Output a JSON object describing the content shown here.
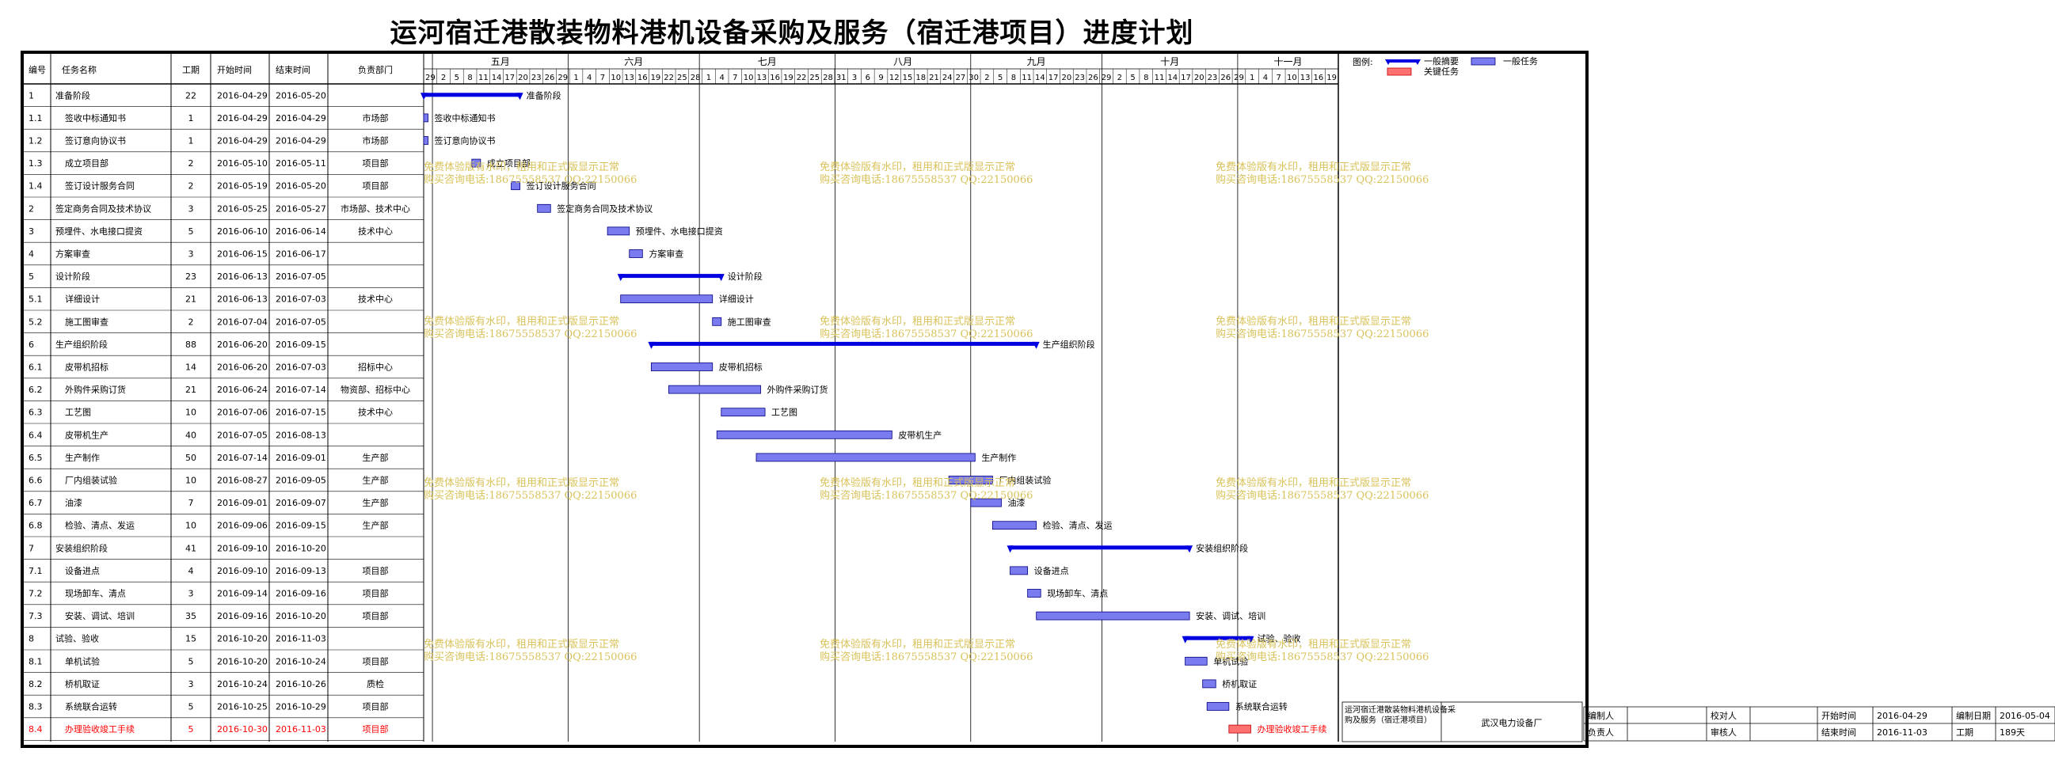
{
  "title": "运河宿迁港散装物料港机设备采购及服务（宿迁港项目）进度计划",
  "columns": [
    "编号",
    "任务名称",
    "工期",
    "开始时间",
    "结束时间",
    "负责部门"
  ],
  "legend": {
    "label": "图例:",
    "summary": "一般摘要",
    "task": "一般任务",
    "critical": "关键任务"
  },
  "colors": {
    "bar": "#7b7bf0",
    "summary": "#0000e0",
    "critical": "#ff7070",
    "critical_text": "#ff0000",
    "watermark": "#d9c25a"
  },
  "watermark": {
    "line1": "免费体验版有水印，租用和正式版显示正常",
    "line2": "购买咨询电话:18675558537 QQ:22150066"
  },
  "footer": {
    "project_name": "运河宿迁港散装物料港机设备采购及服务（宿迁港项目）",
    "company": "武汉电力设备厂",
    "editor_label": "编制人",
    "editor_value": "",
    "checker_label": "校对人",
    "checker_value": "",
    "start_label": "开始时间",
    "start_value": "2016-04-29",
    "date_label": "编制日期",
    "date_value": "2016-05-04",
    "owner_label": "负责人",
    "owner_value": "",
    "reviewer_label": "审核人",
    "reviewer_value": "",
    "end_label": "结束时间",
    "end_value": "2016-11-03",
    "duration_label": "工期",
    "duration_value": "189天"
  },
  "chart_data": {
    "type": "gantt",
    "x_start": "2016-04-29",
    "x_end": "2016-11-21",
    "months": [
      {
        "name": "五月",
        "start": "2016-05-01"
      },
      {
        "name": "六月",
        "start": "2016-06-01"
      },
      {
        "name": "七月",
        "start": "2016-07-01"
      },
      {
        "name": "八月",
        "start": "2016-08-01"
      },
      {
        "name": "九月",
        "start": "2016-09-01"
      },
      {
        "name": "十月",
        "start": "2016-10-01"
      },
      {
        "name": "十一月",
        "start": "2016-11-01"
      }
    ],
    "day_ticks": [
      "29",
      "2",
      "5",
      "8",
      "11",
      "14",
      "17",
      "20",
      "23",
      "26",
      "29",
      "1",
      "4",
      "7",
      "10",
      "13",
      "16",
      "19",
      "22",
      "25",
      "28",
      "1",
      "4",
      "7",
      "10",
      "13",
      "16",
      "19",
      "22",
      "25",
      "28",
      "31",
      "3",
      "6",
      "9",
      "12",
      "15",
      "18",
      "21",
      "24",
      "27",
      "30",
      "2",
      "5",
      "8",
      "11",
      "14",
      "17",
      "20",
      "23",
      "26",
      "29",
      "2",
      "5",
      "8",
      "11",
      "14",
      "17",
      "20",
      "23",
      "26",
      "29",
      "1",
      "4",
      "7",
      "10",
      "13",
      "16",
      "19"
    ],
    "tasks": [
      {
        "id": "1",
        "name": "准备阶段",
        "duration": "22",
        "start": "2016-04-29",
        "end": "2016-05-20",
        "dept": "",
        "kind": "summary"
      },
      {
        "id": "1.1",
        "name": "签收中标通知书",
        "duration": "1",
        "start": "2016-04-29",
        "end": "2016-04-29",
        "dept": "市场部",
        "kind": "task"
      },
      {
        "id": "1.2",
        "name": "签订意向协议书",
        "duration": "1",
        "start": "2016-04-29",
        "end": "2016-04-29",
        "dept": "市场部",
        "kind": "task"
      },
      {
        "id": "1.3",
        "name": "成立项目部",
        "duration": "2",
        "start": "2016-05-10",
        "end": "2016-05-11",
        "dept": "项目部",
        "kind": "task"
      },
      {
        "id": "1.4",
        "name": "签订设计服务合同",
        "duration": "2",
        "start": "2016-05-19",
        "end": "2016-05-20",
        "dept": "项目部",
        "kind": "task"
      },
      {
        "id": "2",
        "name": "签定商务合同及技术协议",
        "duration": "3",
        "start": "2016-05-25",
        "end": "2016-05-27",
        "dept": "市场部、技术中心",
        "kind": "task"
      },
      {
        "id": "3",
        "name": "预埋件、水电接口提资",
        "duration": "5",
        "start": "2016-06-10",
        "end": "2016-06-14",
        "dept": "技术中心",
        "kind": "task"
      },
      {
        "id": "4",
        "name": "方案审查",
        "duration": "3",
        "start": "2016-06-15",
        "end": "2016-06-17",
        "dept": "",
        "kind": "task"
      },
      {
        "id": "5",
        "name": "设计阶段",
        "duration": "23",
        "start": "2016-06-13",
        "end": "2016-07-05",
        "dept": "",
        "kind": "summary"
      },
      {
        "id": "5.1",
        "name": "详细设计",
        "duration": "21",
        "start": "2016-06-13",
        "end": "2016-07-03",
        "dept": "技术中心",
        "kind": "task"
      },
      {
        "id": "5.2",
        "name": "施工图审查",
        "duration": "2",
        "start": "2016-07-04",
        "end": "2016-07-05",
        "dept": "",
        "kind": "task"
      },
      {
        "id": "6",
        "name": "生产组织阶段",
        "duration": "88",
        "start": "2016-06-20",
        "end": "2016-09-15",
        "dept": "",
        "kind": "summary"
      },
      {
        "id": "6.1",
        "name": "皮带机招标",
        "duration": "14",
        "start": "2016-06-20",
        "end": "2016-07-03",
        "dept": "招标中心",
        "kind": "task"
      },
      {
        "id": "6.2",
        "name": "外购件采购订货",
        "duration": "21",
        "start": "2016-06-24",
        "end": "2016-07-14",
        "dept": "物资部、招标中心",
        "kind": "task"
      },
      {
        "id": "6.3",
        "name": "工艺图",
        "duration": "10",
        "start": "2016-07-06",
        "end": "2016-07-15",
        "dept": "技术中心",
        "kind": "task"
      },
      {
        "id": "6.4",
        "name": "皮带机生产",
        "duration": "40",
        "start": "2016-07-05",
        "end": "2016-08-13",
        "dept": "",
        "kind": "task"
      },
      {
        "id": "6.5",
        "name": "生产制作",
        "duration": "50",
        "start": "2016-07-14",
        "end": "2016-09-01",
        "dept": "生产部",
        "kind": "task"
      },
      {
        "id": "6.6",
        "name": "厂内组装试验",
        "duration": "10",
        "start": "2016-08-27",
        "end": "2016-09-05",
        "dept": "生产部",
        "kind": "task"
      },
      {
        "id": "6.7",
        "name": "油漆",
        "duration": "7",
        "start": "2016-09-01",
        "end": "2016-09-07",
        "dept": "生产部",
        "kind": "task"
      },
      {
        "id": "6.8",
        "name": "检验、清点、发运",
        "duration": "10",
        "start": "2016-09-06",
        "end": "2016-09-15",
        "dept": "生产部",
        "kind": "task"
      },
      {
        "id": "7",
        "name": "安装组织阶段",
        "duration": "41",
        "start": "2016-09-10",
        "end": "2016-10-20",
        "dept": "",
        "kind": "summary"
      },
      {
        "id": "7.1",
        "name": "设备进点",
        "duration": "4",
        "start": "2016-09-10",
        "end": "2016-09-13",
        "dept": "项目部",
        "kind": "task"
      },
      {
        "id": "7.2",
        "name": "现场卸车、清点",
        "duration": "3",
        "start": "2016-09-14",
        "end": "2016-09-16",
        "dept": "项目部",
        "kind": "task"
      },
      {
        "id": "7.3",
        "name": "安装、调试、培训",
        "duration": "35",
        "start": "2016-09-16",
        "end": "2016-10-20",
        "dept": "项目部",
        "kind": "task"
      },
      {
        "id": "8",
        "name": "试验、验收",
        "duration": "15",
        "start": "2016-10-20",
        "end": "2016-11-03",
        "dept": "",
        "kind": "summary"
      },
      {
        "id": "8.1",
        "name": "单机试验",
        "duration": "5",
        "start": "2016-10-20",
        "end": "2016-10-24",
        "dept": "项目部",
        "kind": "task"
      },
      {
        "id": "8.2",
        "name": "桥机取证",
        "duration": "3",
        "start": "2016-10-24",
        "end": "2016-10-26",
        "dept": "质检",
        "kind": "task"
      },
      {
        "id": "8.3",
        "name": "系统联合运转",
        "duration": "5",
        "start": "2016-10-25",
        "end": "2016-10-29",
        "dept": "项目部",
        "kind": "task"
      },
      {
        "id": "8.4",
        "name": "办理验收竣工手续",
        "duration": "5",
        "start": "2016-10-30",
        "end": "2016-11-03",
        "dept": "项目部",
        "kind": "critical"
      }
    ]
  }
}
